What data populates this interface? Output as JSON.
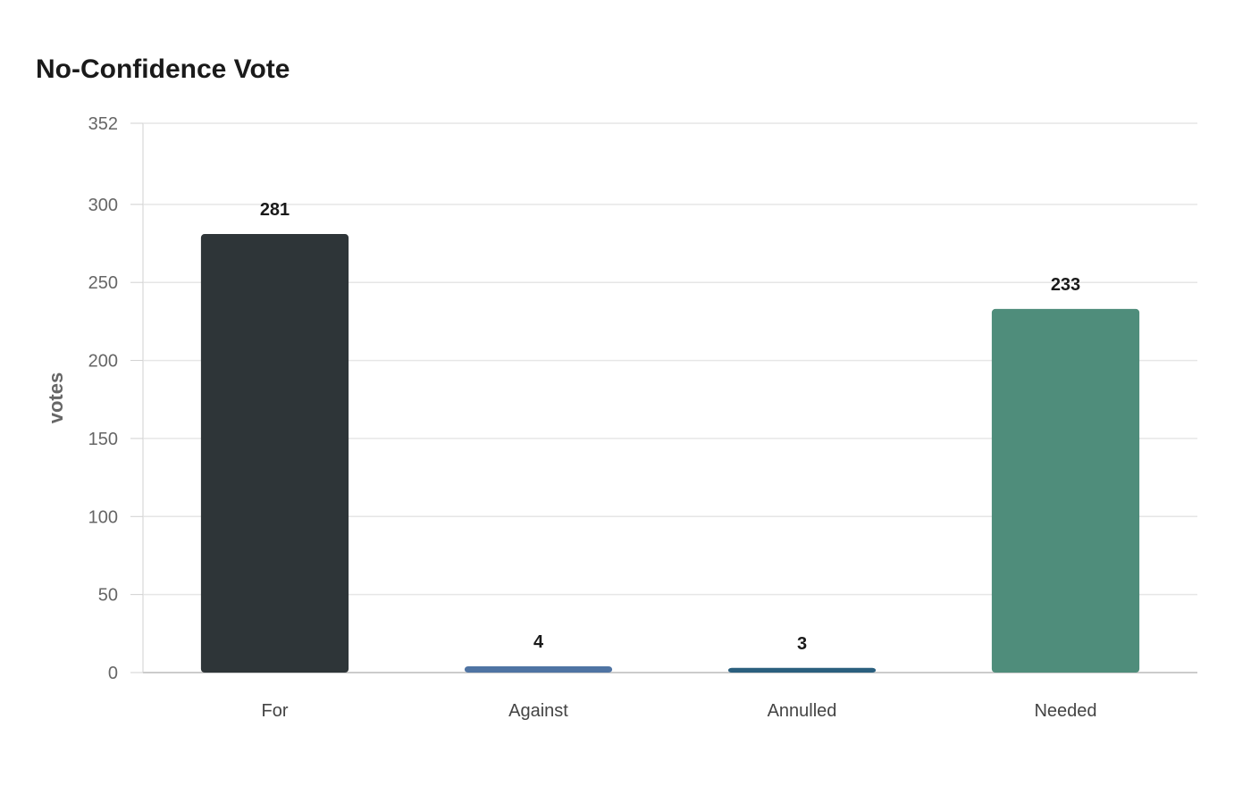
{
  "chart_data": {
    "type": "bar",
    "title": "No-Confidence Vote",
    "xlabel": "",
    "ylabel": "votes",
    "categories": [
      "For",
      "Against",
      "Annulled",
      "Needed"
    ],
    "values": [
      281,
      4,
      3,
      233
    ],
    "colors": [
      "#2e3538",
      "#4f74a3",
      "#2a5f7e",
      "#4f8d7b"
    ],
    "ylim": [
      0,
      352
    ],
    "yticks": [
      0,
      50,
      100,
      150,
      200,
      250,
      300,
      352
    ],
    "grid": true,
    "legend": "none"
  }
}
